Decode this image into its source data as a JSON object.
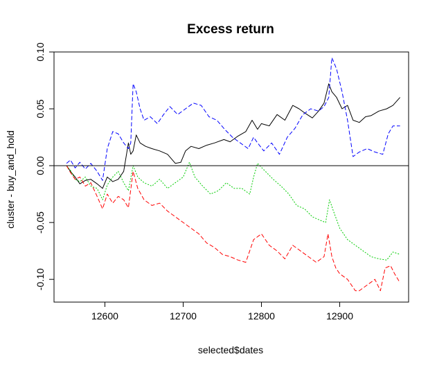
{
  "chart_data": {
    "type": "line",
    "title": "Excess return",
    "xlabel": "selected$dates",
    "ylabel": "cluster - buy_and_hold",
    "xlim": [
      12535,
      12988
    ],
    "ylim": [
      -0.12,
      0.1
    ],
    "x_ticks": [
      12600,
      12700,
      12800,
      12900
    ],
    "y_ticks": [
      -0.1,
      -0.05,
      0.0,
      0.05,
      0.1
    ],
    "x_tick_labels": [
      "12600",
      "12700",
      "12800",
      "12900"
    ],
    "y_tick_labels": [
      "-0.10",
      "-0.05",
      "0.00",
      "0.05",
      "0.10"
    ],
    "hline": 0,
    "grid": false,
    "legend": "none",
    "series": [
      {
        "color": "#000000",
        "dash": "solid",
        "x": [
          12551,
          12556,
          12562,
          12568,
          12575,
          12582,
          12590,
          12597,
          12603,
          12610,
          12617,
          12624,
          12630,
          12633,
          12636,
          12640,
          12645,
          12652,
          12660,
          12670,
          12680,
          12690,
          12697,
          12703,
          12710,
          12720,
          12730,
          12740,
          12752,
          12760,
          12770,
          12780,
          12788,
          12795,
          12800,
          12810,
          12820,
          12830,
          12840,
          12848,
          12856,
          12865,
          12873,
          12880,
          12886,
          12890,
          12896,
          12903,
          12910,
          12917,
          12925,
          12933,
          12940,
          12950,
          12960,
          12968,
          12977
        ],
        "y": [
          0.0,
          -0.005,
          -0.01,
          -0.016,
          -0.013,
          -0.012,
          -0.016,
          -0.02,
          -0.01,
          -0.014,
          -0.012,
          -0.005,
          0.02,
          0.01,
          0.013,
          0.027,
          0.02,
          0.017,
          0.015,
          0.013,
          0.01,
          0.002,
          0.003,
          0.013,
          0.017,
          0.015,
          0.018,
          0.02,
          0.023,
          0.021,
          0.026,
          0.03,
          0.04,
          0.032,
          0.037,
          0.035,
          0.045,
          0.04,
          0.053,
          0.05,
          0.046,
          0.042,
          0.048,
          0.055,
          0.072,
          0.065,
          0.06,
          0.05,
          0.053,
          0.04,
          0.038,
          0.043,
          0.044,
          0.048,
          0.05,
          0.053,
          0.06
        ]
      },
      {
        "color": "#0000ff",
        "dash": "dashed",
        "x": [
          12551,
          12556,
          12562,
          12568,
          12575,
          12582,
          12590,
          12597,
          12603,
          12610,
          12617,
          12624,
          12630,
          12633,
          12636,
          12640,
          12645,
          12650,
          12658,
          12667,
          12675,
          12683,
          12693,
          12703,
          12713,
          12723,
          12733,
          12743,
          12753,
          12763,
          12773,
          12783,
          12790,
          12795,
          12803,
          12813,
          12823,
          12833,
          12843,
          12853,
          12863,
          12873,
          12880,
          12886,
          12890,
          12896,
          12903,
          12910,
          12917,
          12925,
          12935,
          12945,
          12955,
          12962,
          12968,
          12977
        ],
        "y": [
          0.002,
          0.005,
          -0.002,
          0.003,
          -0.003,
          0.002,
          -0.005,
          -0.013,
          0.015,
          0.03,
          0.028,
          0.02,
          0.015,
          0.02,
          0.072,
          0.065,
          0.05,
          0.04,
          0.043,
          0.037,
          0.045,
          0.052,
          0.045,
          0.05,
          0.055,
          0.053,
          0.043,
          0.04,
          0.032,
          0.025,
          0.02,
          0.015,
          0.025,
          0.02,
          0.013,
          0.02,
          0.01,
          0.025,
          0.033,
          0.045,
          0.05,
          0.048,
          0.052,
          0.06,
          0.095,
          0.085,
          0.065,
          0.04,
          0.008,
          0.012,
          0.015,
          0.012,
          0.01,
          0.028,
          0.035,
          0.035
        ]
      },
      {
        "color": "#00cc00",
        "dash": "dotted",
        "x": [
          12551,
          12556,
          12562,
          12568,
          12575,
          12582,
          12590,
          12597,
          12603,
          12610,
          12617,
          12624,
          12630,
          12636,
          12642,
          12650,
          12660,
          12670,
          12680,
          12690,
          12700,
          12708,
          12715,
          12725,
          12735,
          12745,
          12755,
          12765,
          12775,
          12785,
          12790,
          12795,
          12805,
          12815,
          12825,
          12835,
          12845,
          12855,
          12865,
          12875,
          12882,
          12887,
          12892,
          12900,
          12910,
          12920,
          12930,
          12940,
          12950,
          12960,
          12968,
          12977
        ],
        "y": [
          0.0,
          -0.004,
          -0.012,
          -0.014,
          -0.01,
          -0.018,
          -0.02,
          -0.03,
          -0.017,
          -0.01,
          -0.005,
          -0.015,
          -0.022,
          0.0,
          -0.01,
          -0.015,
          -0.018,
          -0.012,
          -0.02,
          -0.015,
          -0.01,
          0.003,
          -0.01,
          -0.018,
          -0.025,
          -0.022,
          -0.015,
          -0.02,
          -0.02,
          -0.025,
          -0.01,
          0.002,
          -0.005,
          -0.012,
          -0.018,
          -0.025,
          -0.035,
          -0.038,
          -0.045,
          -0.048,
          -0.05,
          -0.03,
          -0.04,
          -0.055,
          -0.065,
          -0.07,
          -0.075,
          -0.08,
          -0.082,
          -0.083,
          -0.076,
          -0.078
        ]
      },
      {
        "color": "#ff0000",
        "dash": "dashed",
        "x": [
          12551,
          12556,
          12562,
          12568,
          12575,
          12582,
          12590,
          12597,
          12603,
          12610,
          12617,
          12624,
          12630,
          12636,
          12642,
          12650,
          12660,
          12670,
          12680,
          12690,
          12700,
          12710,
          12720,
          12730,
          12740,
          12750,
          12760,
          12770,
          12780,
          12790,
          12800,
          12810,
          12820,
          12830,
          12840,
          12850,
          12860,
          12870,
          12880,
          12885,
          12890,
          12895,
          12900,
          12910,
          12920,
          12925,
          12935,
          12945,
          12952,
          12958,
          12965,
          12970,
          12977
        ],
        "y": [
          0.0,
          -0.006,
          -0.012,
          -0.01,
          -0.018,
          -0.015,
          -0.027,
          -0.038,
          -0.025,
          -0.033,
          -0.027,
          -0.03,
          -0.037,
          -0.005,
          -0.02,
          -0.03,
          -0.035,
          -0.033,
          -0.04,
          -0.045,
          -0.05,
          -0.055,
          -0.06,
          -0.068,
          -0.072,
          -0.078,
          -0.08,
          -0.083,
          -0.085,
          -0.065,
          -0.06,
          -0.07,
          -0.075,
          -0.082,
          -0.07,
          -0.075,
          -0.08,
          -0.085,
          -0.08,
          -0.06,
          -0.08,
          -0.09,
          -0.095,
          -0.1,
          -0.11,
          -0.11,
          -0.105,
          -0.1,
          -0.11,
          -0.09,
          -0.088,
          -0.095,
          -0.103
        ]
      }
    ]
  }
}
